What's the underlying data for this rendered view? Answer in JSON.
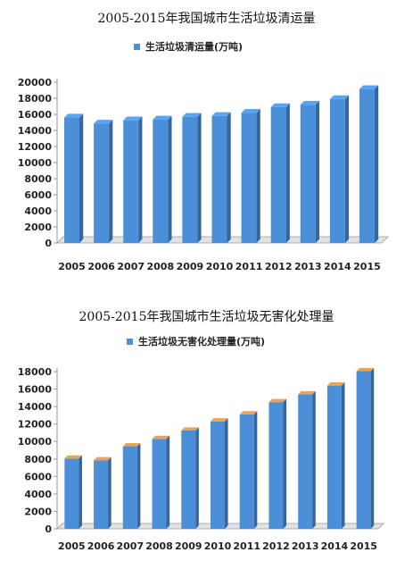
{
  "chart_data": [
    {
      "type": "bar",
      "title": "2005-2015年我国城市生活垃圾清运量",
      "categories": [
        "2005",
        "2006",
        "2007",
        "2008",
        "2009",
        "2010",
        "2011",
        "2012",
        "2013",
        "2014",
        "2015"
      ],
      "series": [
        {
          "name": "生活垃圾清运量(万吨)",
          "values": [
            15600,
            14850,
            15250,
            15350,
            15700,
            15800,
            16200,
            16900,
            17200,
            17900,
            19150
          ]
        }
      ],
      "yticks": [
        "0",
        "2000",
        "4000",
        "6000",
        "8000",
        "10000",
        "12000",
        "14000",
        "16000",
        "18000",
        "20000"
      ],
      "ylim": [
        0,
        20000
      ],
      "legend_position": "top",
      "grid": false,
      "bar_color": "#4a8fd8"
    },
    {
      "type": "bar",
      "title": "2005-2015年我国城市生活垃圾无害化处理量",
      "categories": [
        "2005",
        "2006",
        "2007",
        "2008",
        "2009",
        "2010",
        "2011",
        "2012",
        "2013",
        "2014",
        "2015"
      ],
      "series": [
        {
          "name": "生活垃圾无害化处理量(万吨)",
          "values": [
            8050,
            7850,
            9450,
            10300,
            11250,
            12300,
            13100,
            14500,
            15400,
            16400,
            18050
          ]
        }
      ],
      "yticks": [
        "0",
        "2000",
        "4000",
        "6000",
        "8000",
        "10000",
        "12000",
        "14000",
        "16000",
        "18000"
      ],
      "ylim": [
        0,
        18000
      ],
      "legend_position": "top",
      "grid": false,
      "bar_color": "#4a8fd8"
    }
  ]
}
